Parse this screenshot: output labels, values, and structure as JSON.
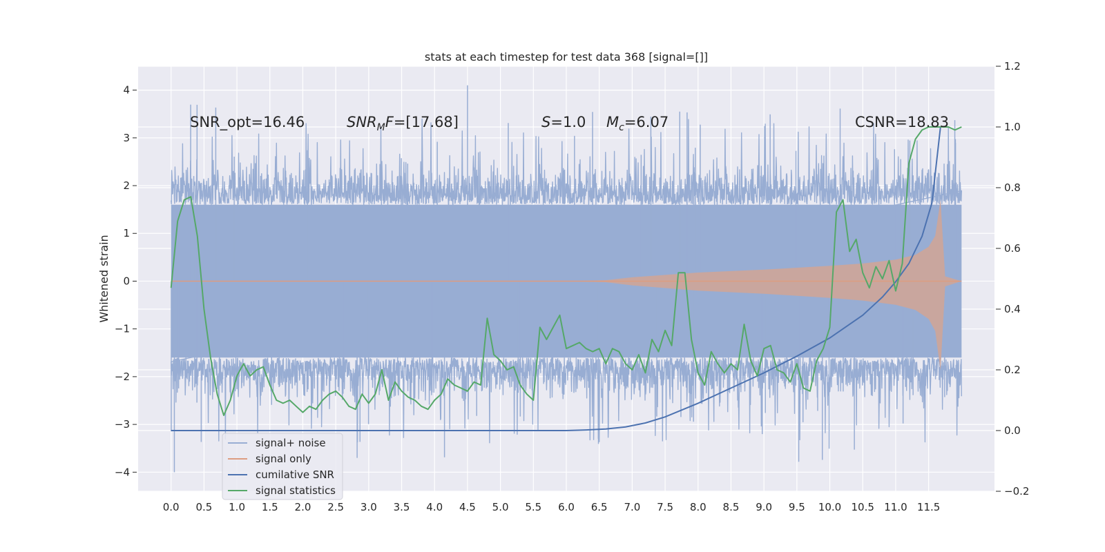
{
  "chart_data": {
    "type": "line",
    "title": "stats at each timestep for test data 368 [signal=[]]",
    "ylabel": "Whitened strain",
    "y2label": "",
    "xlim": [
      -0.5,
      12.5
    ],
    "ylim": [
      -4.4,
      4.5
    ],
    "y2lim": [
      -0.2,
      1.2
    ],
    "xticks": [
      "0.0",
      "0.5",
      "1.0",
      "1.5",
      "2.0",
      "2.5",
      "3.0",
      "3.5",
      "4.0",
      "4.5",
      "5.0",
      "5.5",
      "6.0",
      "6.5",
      "7.0",
      "7.5",
      "8.0",
      "8.5",
      "9.0",
      "9.5",
      "10.0",
      "10.5",
      "11.0",
      "11.5"
    ],
    "yticks": [
      "4",
      "3",
      "2",
      "1",
      "0",
      "−1",
      "−2",
      "−3",
      "−4"
    ],
    "y2ticks": [
      "1.2",
      "1.0",
      "0.8",
      "0.6",
      "0.4",
      "0.2",
      "0.0",
      "−0.2"
    ],
    "grid": true,
    "legend_position": "lower-left",
    "annotations": {
      "snr_opt": "SNR_opt=16.46",
      "snr_mf": "=[17.68]",
      "snr_mf_symbol": "SNR",
      "snr_mf_sub": "M",
      "snr_mf_tail": "F",
      "s": "=1.0",
      "s_symbol": "S",
      "mc": "=6.07",
      "mc_symbol": "M",
      "mc_sub": "c",
      "csnr": "CSNR=18.83"
    },
    "series": [
      {
        "name": "signal+ noise",
        "color": "#98add3",
        "axis": "left",
        "x_range": [
          0.0,
          12.0
        ],
        "description_values": {
          "typical_min": -2.0,
          "typical_max": 2.0,
          "peak_max": 4.1,
          "peak_min": -4.0
        }
      },
      {
        "name": "signal only",
        "color": "#dd8452",
        "axis": "left",
        "x_range": [
          0.0,
          12.0
        ],
        "envelope": {
          "x": [
            0.0,
            6.0,
            6.6,
            7.0,
            8.0,
            9.0,
            10.0,
            10.5,
            11.0,
            11.3,
            11.5,
            11.6,
            11.68,
            11.75,
            12.0
          ],
          "amp": [
            0.0,
            0.0,
            0.02,
            0.08,
            0.18,
            0.24,
            0.32,
            0.37,
            0.45,
            0.55,
            0.72,
            0.95,
            1.7,
            0.1,
            0.0
          ]
        }
      },
      {
        "name": "cumilative SNR",
        "color": "#4c72b0",
        "axis": "right",
        "x": [
          0.0,
          6.0,
          6.3,
          6.6,
          6.9,
          7.2,
          7.5,
          8.0,
          8.5,
          9.0,
          9.5,
          10.0,
          10.5,
          10.8,
          11.0,
          11.2,
          11.4,
          11.55,
          11.68
        ],
        "y": [
          0.0,
          0.0,
          0.002,
          0.005,
          0.012,
          0.025,
          0.045,
          0.09,
          0.14,
          0.19,
          0.245,
          0.305,
          0.38,
          0.44,
          0.49,
          0.55,
          0.64,
          0.75,
          1.0
        ]
      },
      {
        "name": "signal statistics",
        "color": "#55a868",
        "axis": "right",
        "x": [
          0.0,
          0.1,
          0.2,
          0.3,
          0.4,
          0.5,
          0.6,
          0.7,
          0.8,
          0.9,
          1.0,
          1.1,
          1.2,
          1.3,
          1.4,
          1.5,
          1.6,
          1.7,
          1.8,
          1.9,
          2.0,
          2.1,
          2.2,
          2.3,
          2.4,
          2.5,
          2.6,
          2.7,
          2.8,
          2.9,
          3.0,
          3.1,
          3.2,
          3.3,
          3.4,
          3.5,
          3.6,
          3.7,
          3.8,
          3.9,
          4.0,
          4.1,
          4.2,
          4.3,
          4.4,
          4.5,
          4.6,
          4.7,
          4.8,
          4.9,
          5.0,
          5.1,
          5.2,
          5.3,
          5.4,
          5.5,
          5.6,
          5.7,
          5.8,
          5.9,
          6.0,
          6.1,
          6.2,
          6.3,
          6.4,
          6.5,
          6.6,
          6.7,
          6.8,
          6.9,
          7.0,
          7.1,
          7.2,
          7.3,
          7.4,
          7.5,
          7.6,
          7.7,
          7.8,
          7.9,
          8.0,
          8.1,
          8.2,
          8.3,
          8.4,
          8.5,
          8.6,
          8.7,
          8.8,
          8.9,
          9.0,
          9.1,
          9.2,
          9.3,
          9.4,
          9.5,
          9.6,
          9.7,
          9.8,
          9.9,
          10.0,
          10.1,
          10.2,
          10.3,
          10.4,
          10.5,
          10.6,
          10.7,
          10.8,
          10.9,
          11.0,
          11.1,
          11.2,
          11.3,
          11.4,
          11.5,
          11.6,
          11.7,
          11.8,
          11.9,
          12.0
        ],
        "y": [
          0.47,
          0.69,
          0.76,
          0.77,
          0.64,
          0.4,
          0.24,
          0.12,
          0.05,
          0.1,
          0.18,
          0.22,
          0.18,
          0.2,
          0.21,
          0.15,
          0.1,
          0.09,
          0.1,
          0.08,
          0.06,
          0.08,
          0.07,
          0.1,
          0.12,
          0.13,
          0.11,
          0.08,
          0.07,
          0.12,
          0.09,
          0.12,
          0.2,
          0.1,
          0.16,
          0.13,
          0.11,
          0.1,
          0.08,
          0.07,
          0.1,
          0.12,
          0.17,
          0.15,
          0.14,
          0.13,
          0.16,
          0.15,
          0.37,
          0.25,
          0.23,
          0.2,
          0.21,
          0.15,
          0.12,
          0.1,
          0.34,
          0.3,
          0.34,
          0.38,
          0.27,
          0.28,
          0.29,
          0.27,
          0.26,
          0.27,
          0.22,
          0.27,
          0.26,
          0.22,
          0.2,
          0.25,
          0.19,
          0.3,
          0.26,
          0.33,
          0.28,
          0.52,
          0.52,
          0.3,
          0.19,
          0.15,
          0.26,
          0.22,
          0.19,
          0.22,
          0.2,
          0.35,
          0.23,
          0.18,
          0.27,
          0.28,
          0.2,
          0.19,
          0.16,
          0.22,
          0.14,
          0.13,
          0.23,
          0.27,
          0.34,
          0.72,
          0.76,
          0.59,
          0.63,
          0.52,
          0.47,
          0.54,
          0.5,
          0.56,
          0.46,
          0.55,
          0.88,
          0.96,
          0.99,
          1.0,
          1.0,
          1.0,
          1.0,
          0.99,
          1.0
        ]
      }
    ]
  }
}
